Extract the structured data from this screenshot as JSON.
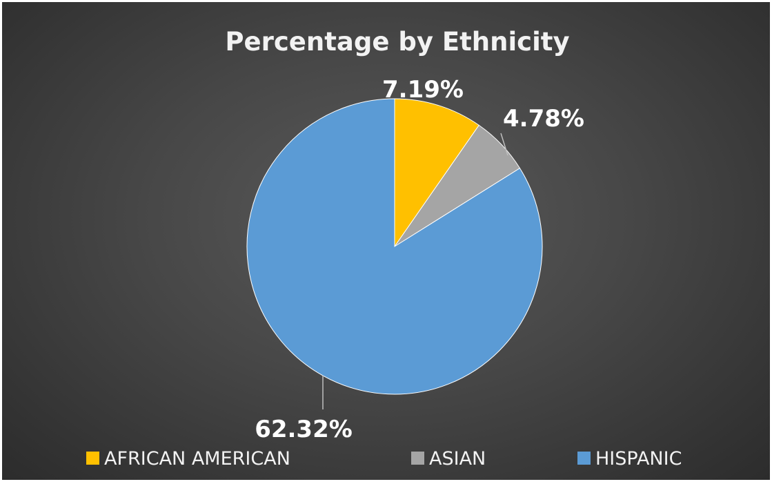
{
  "chart_data": {
    "type": "pie",
    "title": "Percentage by Ethnicity",
    "categories": [
      "AFRICAN AMERICAN",
      "ASIAN",
      "HISPANIC"
    ],
    "values": [
      7.19,
      4.78,
      62.32
    ],
    "labels": [
      "7.19%",
      "4.78%",
      "62.32%"
    ],
    "colors": [
      "#FFC000",
      "#A5A5A5",
      "#5B9BD5"
    ],
    "legend_position": "bottom"
  }
}
